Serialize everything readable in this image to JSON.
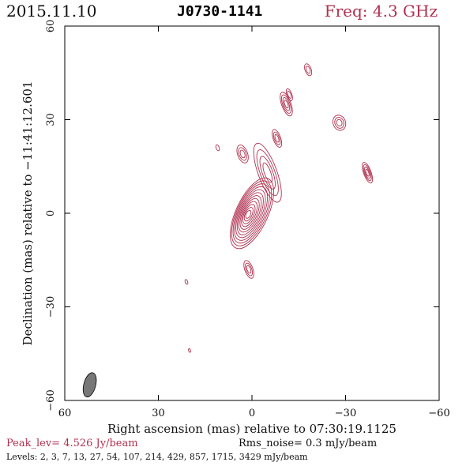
{
  "header": {
    "date": "2015.11.10",
    "source": "J0730-1141",
    "freq": "Freq: 4.3 GHz"
  },
  "footer": {
    "peak": "Peak_lev=  4.526 Jy/beam",
    "rms": "Rms_noise=  0.3 mJy/beam",
    "levels": "Levels:   2,   3,   7,   13,   27,   54,  107,  214,  429,  857,  1715,  3429 mJy/beam"
  },
  "colors": {
    "contour": "#b0304f",
    "beam": "#777777",
    "text_accent": "#b0304f"
  },
  "chart_data": {
    "type": "contour",
    "xlabel": "Right ascension (mas) relative to 07:30:19.1125",
    "ylabel": "Declination (mas) relative to −11:41:12.601",
    "xlim": [
      60,
      -60
    ],
    "ylim": [
      -60,
      60
    ],
    "xticks": [
      60,
      30,
      0,
      -30,
      -60
    ],
    "xtick_labels": [
      "60",
      "30",
      "0",
      "−30",
      "−60"
    ],
    "yticks": [
      -60,
      -30,
      0,
      30,
      60
    ],
    "ytick_labels": [
      "−60",
      "−30",
      "0",
      "30",
      "60"
    ],
    "peak_jy_per_beam": 4.526,
    "rms_mjy_per_beam": 0.3,
    "levels_mjy": [
      2,
      3,
      7,
      13,
      27,
      54,
      107,
      214,
      429,
      857,
      1715,
      3429
    ],
    "core": {
      "x": 0,
      "y": 0,
      "major_axis_mas": 14,
      "minor_axis_mas": 4,
      "angle_deg_from_north_east": 25
    },
    "jet_knots": [
      {
        "x": -5,
        "y": 13,
        "sx": 3,
        "sy": 10
      },
      {
        "x": -8,
        "y": 24,
        "sx": 1.2,
        "sy": 3
      },
      {
        "x": -11,
        "y": 35,
        "sx": 1.5,
        "sy": 4
      },
      {
        "x": -12,
        "y": 38,
        "sx": 0.8,
        "sy": 2
      },
      {
        "x": -18,
        "y": 46,
        "sx": 1.0,
        "sy": 2
      },
      {
        "x": -28,
        "y": 29,
        "sx": 2.0,
        "sy": 2.5
      },
      {
        "x": -37,
        "y": 13,
        "sx": 1.2,
        "sy": 3.5
      },
      {
        "x": 11,
        "y": 21,
        "sx": 0.5,
        "sy": 1
      },
      {
        "x": 3,
        "y": 19,
        "sx": 1.6,
        "sy": 3
      },
      {
        "x": 1,
        "y": -18,
        "sx": 1.3,
        "sy": 3
      },
      {
        "x": 21,
        "y": -22,
        "sx": 0.4,
        "sy": 0.8
      },
      {
        "x": 20,
        "y": -44,
        "sx": 0.3,
        "sy": 0.6
      }
    ],
    "beam": {
      "x": 52,
      "y": -55,
      "major_mas": 6.5,
      "minor_mas": 2.8,
      "pa_deg": 15
    },
    "grid": false
  }
}
